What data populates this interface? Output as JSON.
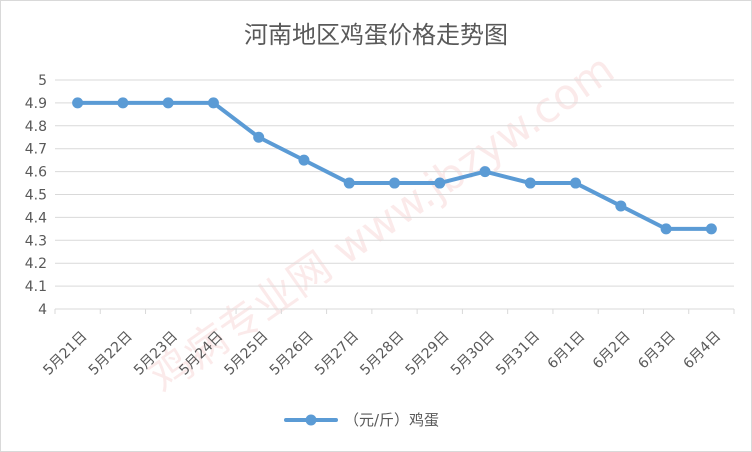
{
  "chart_data": {
    "type": "line",
    "title": "河南地区鸡蛋价格走势图",
    "categories": [
      "5月21日",
      "5月22日",
      "5月23日",
      "5月24日",
      "5月25日",
      "5月26日",
      "5月27日",
      "5月28日",
      "5月29日",
      "5月30日",
      "5月31日",
      "6月1日",
      "6月2日",
      "6月3日",
      "6月4日"
    ],
    "series": [
      {
        "name": "（元/斤）鸡蛋",
        "values": [
          4.9,
          4.9,
          4.9,
          4.9,
          4.75,
          4.65,
          4.55,
          4.55,
          4.55,
          4.6,
          4.55,
          4.55,
          4.45,
          4.35,
          4.35
        ],
        "color": "#5b9bd5"
      }
    ],
    "ylim": [
      4,
      5
    ],
    "ytick_step": 0.1,
    "yticks": [
      "4",
      "4.1",
      "4.2",
      "4.3",
      "4.4",
      "4.5",
      "4.6",
      "4.7",
      "4.8",
      "4.9",
      "5"
    ],
    "xlabel": "",
    "ylabel": "",
    "grid": true,
    "legend_position": "bottom",
    "watermark_text": "鸡病专业网 www.jbzyw.com"
  }
}
